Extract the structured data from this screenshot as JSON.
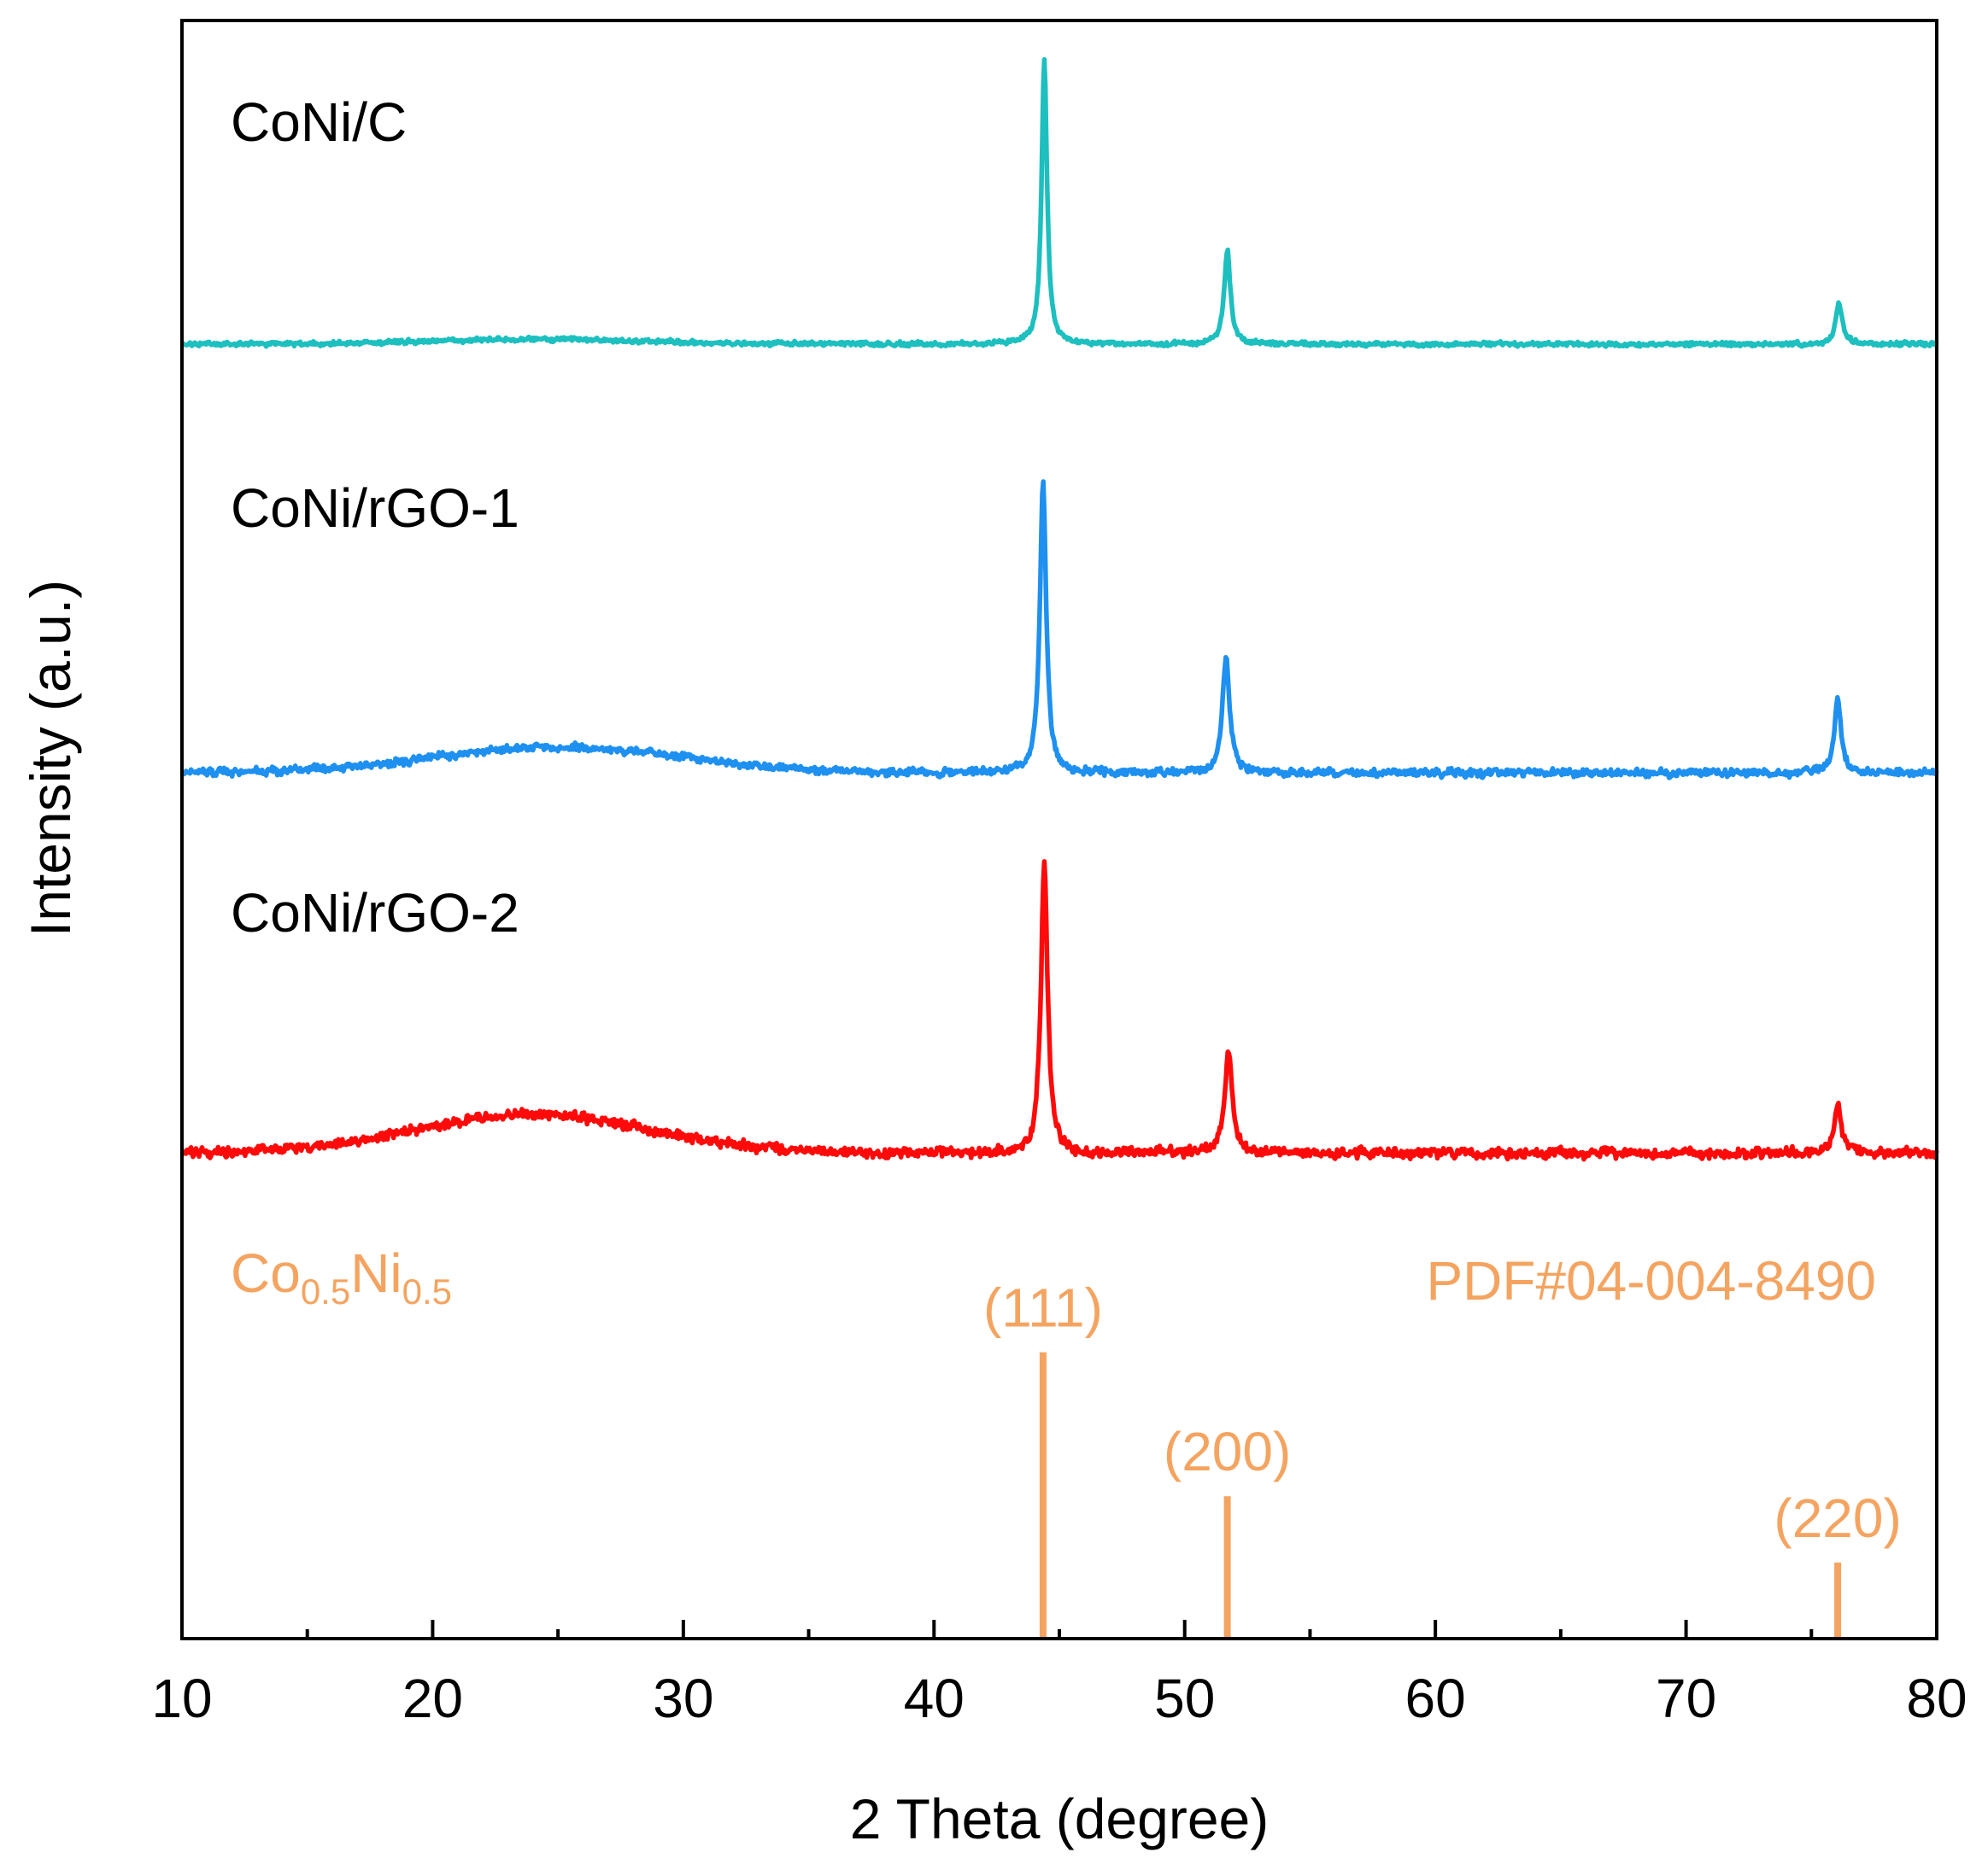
{
  "chart_data": {
    "type": "line",
    "title": "",
    "xlabel": "2 Theta (degree)",
    "ylabel": "Intensity (a.u.)",
    "xlim": [
      10,
      80
    ],
    "x_ticks": [
      10,
      20,
      30,
      40,
      50,
      60,
      70,
      80
    ],
    "x_tick_labels": [
      "10",
      "20",
      "30",
      "40",
      "50",
      "60",
      "70",
      "80"
    ],
    "y_ticks": [],
    "grid": false,
    "legend": "none (series labelled inline)",
    "series": [
      {
        "name": "CoNi/C",
        "color": "#1dbfbf",
        "baseline": 0.8,
        "hump": {
          "center": 24,
          "height": 0.003,
          "width": 6
        },
        "noise": 0.0015,
        "peaks": [
          {
            "two_theta": 44.4,
            "height": 0.175,
            "fwhm": 0.26
          },
          {
            "two_theta": 51.7,
            "height": 0.058,
            "fwhm": 0.3
          },
          {
            "two_theta": 76.1,
            "height": 0.025,
            "fwhm": 0.32
          }
        ]
      },
      {
        "name": "CoNi/rGO-1",
        "color": "#1e90f0",
        "baseline": 0.535,
        "hump": {
          "center": 25,
          "height": 0.016,
          "width": 7
        },
        "noise": 0.0026,
        "peaks": [
          {
            "two_theta": 44.35,
            "height": 0.18,
            "fwhm": 0.3
          },
          {
            "two_theta": 51.65,
            "height": 0.073,
            "fwhm": 0.34
          },
          {
            "two_theta": 76.05,
            "height": 0.046,
            "fwhm": 0.32
          }
        ]
      },
      {
        "name": "CoNi/rGO-2",
        "color": "#ff0a0a",
        "baseline": 0.3,
        "hump": {
          "center": 24,
          "height": 0.024,
          "width": 6.5
        },
        "noise": 0.0034,
        "peaks": [
          {
            "two_theta": 44.4,
            "height": 0.177,
            "fwhm": 0.32
          },
          {
            "two_theta": 51.75,
            "height": 0.062,
            "fwhm": 0.36
          },
          {
            "two_theta": 76.05,
            "height": 0.031,
            "fwhm": 0.34
          }
        ]
      }
    ],
    "reference": {
      "phase": "Co0.5Ni0.5",
      "phase_parts": {
        "el1": "Co",
        "sub1": "0.5",
        "el2": "Ni",
        "sub2": "0.5"
      },
      "card": "PDF#04-004-8490",
      "color": "#f4a460",
      "lines": [
        {
          "two_theta": 44.35,
          "intensity": 0.177,
          "hkl": "(111)"
        },
        {
          "two_theta": 51.7,
          "intensity": 0.088,
          "hkl": "(200)"
        },
        {
          "two_theta": 76.05,
          "intensity": 0.047,
          "hkl": "(220)"
        }
      ]
    }
  }
}
